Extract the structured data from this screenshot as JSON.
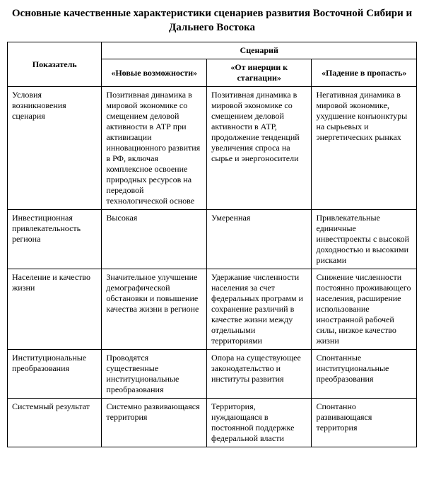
{
  "title": "Основные качественные характеристики сценариев развития Восточной Сибири и Дальнего Востока",
  "header": {
    "indicator": "Показатель",
    "scenario": "Сценарий",
    "col1": "«Новые возможности»",
    "col2": "«От инерции к стагнации»",
    "col3": "«Падение в пропасть»"
  },
  "rows": [
    {
      "label": "Условия возникновения сценария",
      "c1": "Позитивная динамика в мировой экономике со смещением деловой активности в АТР при активизации инновационного развития в РФ, включая комплексное освоение природных ресурсов на передовой технологической основе",
      "c2": "Позитивная динамика в мировой экономике со смещением деловой активности в АТР, продолжение тенденций увеличения спроса на сырье и энергоносители",
      "c3": "Негативная динамика в мировой экономике, ухудшение конъюнктуры на сырьевых и энергетических рынках"
    },
    {
      "label": "Инвестиционная привлекательность региона",
      "c1": "Высокая",
      "c2": "Умеренная",
      "c3": "Привлекательные единичные инвестпроекты с высокой доходностью и высокими рисками"
    },
    {
      "label": "Население и качество жизни",
      "c1": "Значительное улучшение демографической обстановки и повышение качества жизни в регионе",
      "c2": "Удержание численности населения за счет федеральных программ и сохранение различий в качестве жизни между отдельными территориями",
      "c3": "Снижение численности постоянно проживающего населения, расширение использование иностранной рабочей силы, низкое качество жизни"
    },
    {
      "label": "Институциональные преобразования",
      "c1": "Проводятся существенные институциональные преобразования",
      "c2": "Опора на существующее законодательство и институты развития",
      "c3": "Спонтанные институциональные преобразования"
    },
    {
      "label": "Системный результат",
      "c1": "Системно развивающаяся территория",
      "c2": "Территория, нуждающаяся в постоянной поддержке федеральной власти",
      "c3": "Спонтанно развивающаяся территория"
    }
  ]
}
